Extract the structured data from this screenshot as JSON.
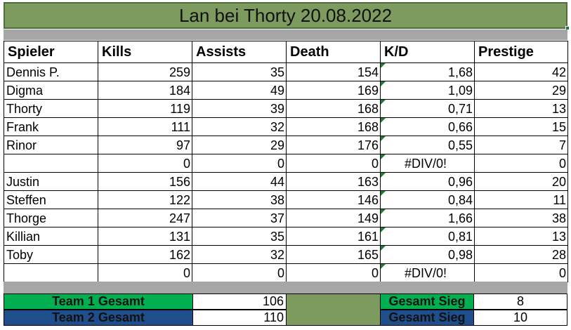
{
  "title": "Lan bei Thorty 20.08.2022",
  "headers": [
    "Spieler",
    "Kills",
    "Assists",
    "Death",
    "K/D",
    "Prestige"
  ],
  "rows": [
    {
      "player": "Dennis P.",
      "kills": "259",
      "assists": "35",
      "deaths": "154",
      "kd": "1,68",
      "prestige": "42"
    },
    {
      "player": "Digma",
      "kills": "184",
      "assists": "49",
      "deaths": "169",
      "kd": "1,09",
      "prestige": "29"
    },
    {
      "player": "Thorty",
      "kills": "119",
      "assists": "39",
      "deaths": "168",
      "kd": "0,71",
      "prestige": "13"
    },
    {
      "player": "Frank",
      "kills": "111",
      "assists": "32",
      "deaths": "168",
      "kd": "0,66",
      "prestige": "15"
    },
    {
      "player": "Rinor",
      "kills": "97",
      "assists": "29",
      "deaths": "176",
      "kd": "0,55",
      "prestige": "7"
    },
    {
      "player": "",
      "kills": "0",
      "assists": "0",
      "deaths": "0",
      "kd": "#DIV/0!",
      "prestige": "0"
    },
    {
      "player": "Justin",
      "kills": "156",
      "assists": "44",
      "deaths": "163",
      "kd": "0,96",
      "prestige": "20"
    },
    {
      "player": "Steffen",
      "kills": "122",
      "assists": "38",
      "deaths": "146",
      "kd": "0,84",
      "prestige": "11"
    },
    {
      "player": "Thorge",
      "kills": "247",
      "assists": "37",
      "deaths": "149",
      "kd": "1,66",
      "prestige": "38"
    },
    {
      "player": "Killian",
      "kills": "131",
      "assists": "35",
      "deaths": "161",
      "kd": "0,81",
      "prestige": "13"
    },
    {
      "player": "Toby",
      "kills": "162",
      "assists": "32",
      "deaths": "165",
      "kd": "0,98",
      "prestige": "28"
    },
    {
      "player": "",
      "kills": "0",
      "assists": "0",
      "deaths": "0",
      "kd": "#DIV/0!",
      "prestige": "0"
    }
  ],
  "summary": {
    "team1_label": "Team 1 Gesamt",
    "team1_value": "106",
    "team2_label": "Team 2 Gesamt",
    "team2_value": "110",
    "sieg1_label": "Gesamt Sieg",
    "sieg1_value": "8",
    "sieg2_label": "Gesamt Sieg",
    "sieg2_value": "10"
  },
  "colors": {
    "title_bg": "#7d9a5f",
    "team1_bg": "#00b050",
    "team2_bg": "#1f4e8c",
    "spacer_bg": "#7d9a5f",
    "band_bg": "#a6a6a6",
    "comment_marker": "#1e7b34"
  }
}
